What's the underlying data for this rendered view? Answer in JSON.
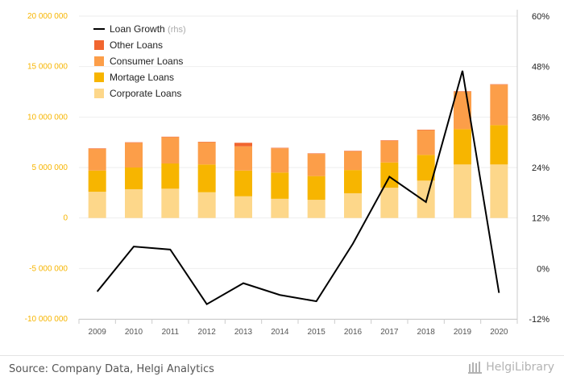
{
  "chart_data": {
    "type": "bar",
    "stacked": true,
    "categories": [
      "2009",
      "2010",
      "2011",
      "2012",
      "2013",
      "2014",
      "2015",
      "2016",
      "2017",
      "2018",
      "2019",
      "2020"
    ],
    "series": [
      {
        "name": "Corporate Loans",
        "color": "#fdd78a",
        "values": [
          2600000,
          2850000,
          2900000,
          2550000,
          2150000,
          1900000,
          1800000,
          2450000,
          3000000,
          3700000,
          5300000,
          5300000
        ]
      },
      {
        "name": "Mortage Loans",
        "color": "#f7b500",
        "values": [
          2100000,
          2150000,
          2500000,
          2750000,
          2550000,
          2600000,
          2350000,
          2300000,
          2500000,
          2550000,
          3500000,
          3900000
        ]
      },
      {
        "name": "Consumer Loans",
        "color": "#fc9e49",
        "values": [
          2150000,
          2450000,
          2600000,
          2200000,
          2400000,
          2400000,
          2200000,
          1850000,
          2150000,
          2450000,
          3700000,
          4000000
        ]
      },
      {
        "name": "Other Loans",
        "color": "#f1652f",
        "values": [
          50000,
          50000,
          50000,
          50000,
          350000,
          50000,
          50000,
          50000,
          50000,
          50000,
          50000,
          50000
        ]
      }
    ],
    "line": {
      "name": "Loan Growth",
      "name_suffix": "(rhs)",
      "color": "#000000",
      "axis": "right",
      "values": [
        -0.055,
        0.052,
        0.045,
        -0.085,
        -0.035,
        -0.063,
        -0.078,
        0.059,
        0.218,
        0.158,
        0.47,
        -0.058
      ]
    },
    "y_left": {
      "min": -10000000,
      "max": 20000000,
      "ticks": [
        20000000,
        15000000,
        10000000,
        5000000,
        0,
        -5000000,
        -10000000
      ],
      "tick_labels": [
        "20 000 000",
        "15 000 000",
        "10 000 000",
        "5 000 000",
        "0",
        "-5 000 000",
        "-10 000 000"
      ]
    },
    "y_right": {
      "min": -0.12,
      "max": 0.6,
      "ticks": [
        0.6,
        0.48,
        0.36,
        0.24,
        0.12,
        0.0,
        -0.12
      ],
      "tick_labels": [
        "60%",
        "48%",
        "36%",
        "24%",
        "12%",
        "0%",
        "-12%"
      ]
    },
    "legend_position": "top-left",
    "grid": true,
    "xlabel": "",
    "ylabel": "",
    "title": ""
  },
  "footer": {
    "source": "Source: Company Data, Helgi Analytics",
    "brand": "HelgiLibrary"
  },
  "colors": {
    "left_axis_labels": "#f7b500",
    "right_axis_labels": "#222222",
    "gridline": "#eeeeee",
    "axis_line": "#cccccc",
    "x_labels": "#555555"
  }
}
